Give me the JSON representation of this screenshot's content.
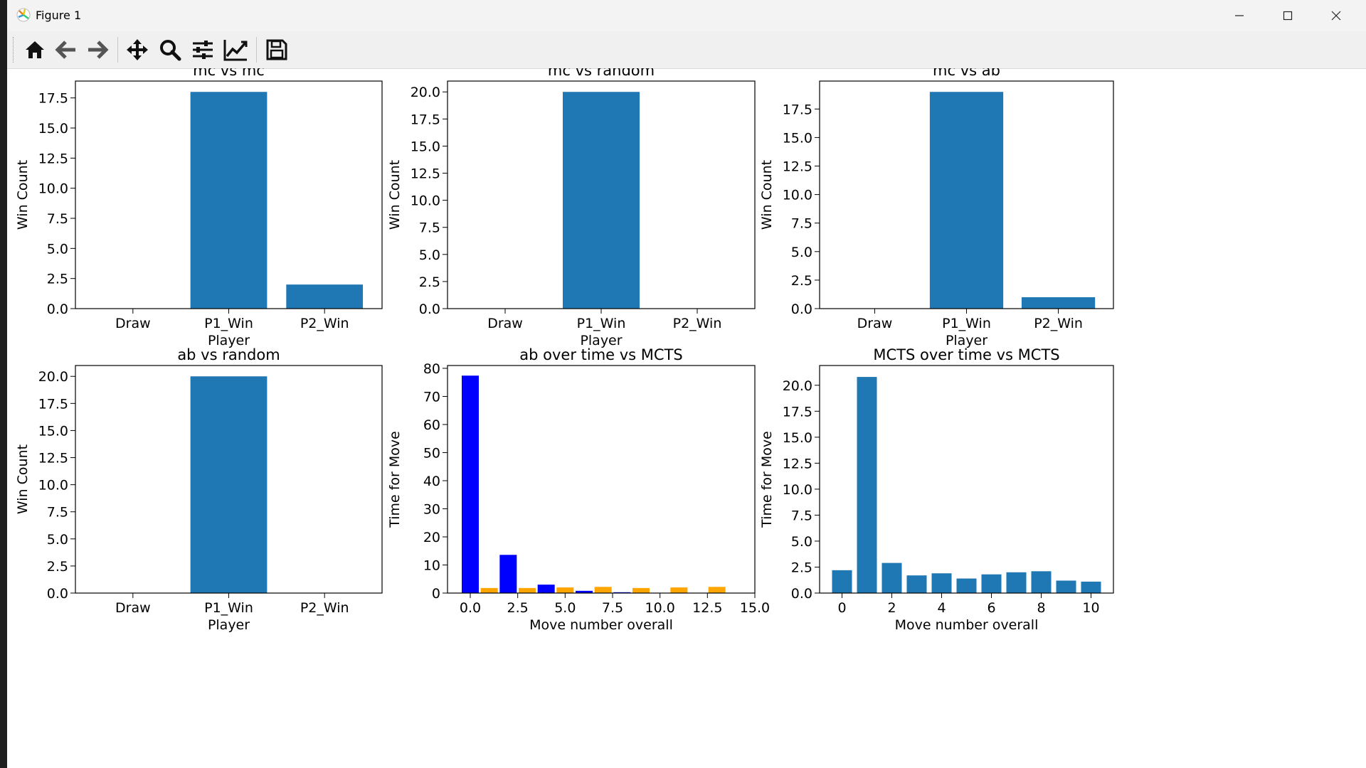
{
  "window": {
    "title": "Figure 1",
    "controls": [
      "minimize",
      "maximize",
      "close"
    ]
  },
  "toolbar": {
    "buttons": [
      {
        "name": "home",
        "icon": "home-icon"
      },
      {
        "name": "back",
        "icon": "arrow-left-icon"
      },
      {
        "name": "forward",
        "icon": "arrow-right-icon"
      },
      {
        "name": "pan",
        "icon": "move-icon"
      },
      {
        "name": "zoom",
        "icon": "magnifier-icon"
      },
      {
        "name": "configure-subplots",
        "icon": "sliders-icon"
      },
      {
        "name": "edit-axis",
        "icon": "line-chart-icon"
      },
      {
        "name": "save",
        "icon": "floppy-disk-icon"
      }
    ]
  },
  "colors": {
    "bar": "#1f77b4",
    "blue": "#0000ff",
    "orange": "#ffa500"
  },
  "chart_data": [
    {
      "type": "bar",
      "title": "mc vs mc",
      "xlabel": "Player",
      "ylabel": "Win Count",
      "categories": [
        "Draw",
        "P1_Win",
        "P2_Win"
      ],
      "values": [
        0,
        18,
        2
      ],
      "ylim": [
        0,
        18.9
      ],
      "yticks": [
        "0.0",
        "2.5",
        "5.0",
        "7.5",
        "10.0",
        "12.5",
        "15.0",
        "17.5"
      ],
      "grid": false
    },
    {
      "type": "bar",
      "title": "mc vs random",
      "xlabel": "Player",
      "ylabel": "Win Count",
      "categories": [
        "Draw",
        "P1_Win",
        "P2_Win"
      ],
      "values": [
        0,
        20,
        0
      ],
      "ylim": [
        0,
        21
      ],
      "yticks": [
        "0.0",
        "2.5",
        "5.0",
        "7.5",
        "10.0",
        "12.5",
        "15.0",
        "17.5",
        "20.0"
      ],
      "grid": false
    },
    {
      "type": "bar",
      "title": "mc vs ab",
      "xlabel": "Player",
      "ylabel": "Win Count",
      "categories": [
        "Draw",
        "P1_Win",
        "P2_Win"
      ],
      "values": [
        0,
        19,
        1
      ],
      "ylim": [
        0,
        19.95
      ],
      "yticks": [
        "0.0",
        "2.5",
        "5.0",
        "7.5",
        "10.0",
        "12.5",
        "15.0",
        "17.5"
      ],
      "grid": false
    },
    {
      "type": "bar",
      "title": "ab vs random",
      "xlabel": "Player",
      "ylabel": "Win Count",
      "categories": [
        "Draw",
        "P1_Win",
        "P2_Win"
      ],
      "values": [
        0,
        20,
        0
      ],
      "ylim": [
        0,
        21
      ],
      "yticks": [
        "0.0",
        "2.5",
        "5.0",
        "7.5",
        "10.0",
        "12.5",
        "15.0",
        "17.5",
        "20.0"
      ],
      "grid": false
    },
    {
      "type": "bar",
      "title": "ab over time vs MCTS",
      "xlabel": "Move number overall",
      "ylabel": "Time for Move",
      "series": [
        {
          "color": "blue",
          "x": [
            0,
            2,
            4,
            6,
            8,
            10,
            12,
            14
          ],
          "values": [
            77.4,
            13.6,
            3.0,
            0.8,
            0.3,
            0.1,
            0.1,
            0.1
          ]
        },
        {
          "color": "orange",
          "x": [
            1,
            3,
            5,
            7,
            9,
            11,
            13
          ],
          "values": [
            1.8,
            1.8,
            2.0,
            2.2,
            1.8,
            2.0,
            2.2
          ]
        }
      ],
      "bar_width": 0.9,
      "xlim": [
        -1.2,
        15.0
      ],
      "ylim": [
        0,
        81
      ],
      "xticks": [
        "0.0",
        "2.5",
        "5.0",
        "7.5",
        "10.0",
        "12.5",
        "15.0"
      ],
      "yticks": [
        "0",
        "10",
        "20",
        "30",
        "40",
        "50",
        "60",
        "70",
        "80"
      ],
      "grid": false
    },
    {
      "type": "bar",
      "title": "MCTS over time vs MCTS",
      "xlabel": "Move number overall",
      "ylabel": "Time for Move",
      "x": [
        0,
        1,
        2,
        3,
        4,
        5,
        6,
        7,
        8,
        9,
        10
      ],
      "values": [
        2.2,
        20.8,
        2.9,
        1.7,
        1.9,
        1.4,
        1.8,
        2.0,
        2.1,
        1.2,
        1.1
      ],
      "bar_width": 0.8,
      "xlim": [
        -0.9,
        10.9
      ],
      "ylim": [
        0,
        21.9
      ],
      "xticks": [
        "0",
        "2",
        "4",
        "6",
        "8",
        "10"
      ],
      "yticks": [
        "0.0",
        "2.5",
        "5.0",
        "7.5",
        "10.0",
        "12.5",
        "15.0",
        "17.5",
        "20.0"
      ],
      "grid": false
    }
  ]
}
